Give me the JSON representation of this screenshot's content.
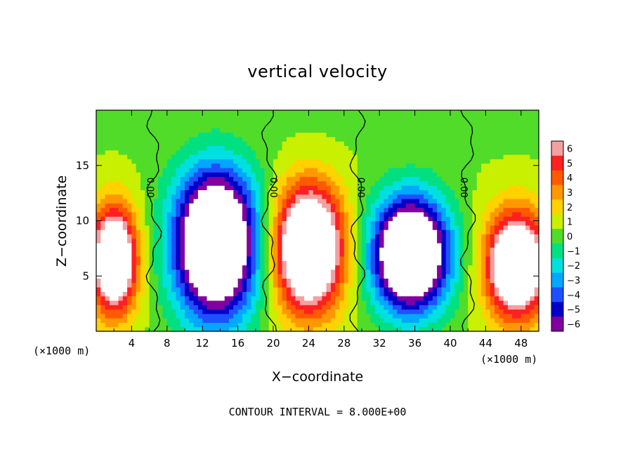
{
  "chart_data": {
    "type": "heatmap",
    "title": "vertical velocity",
    "xlabel": "X−coordinate",
    "ylabel": "Z−coordinate",
    "x_unit": "(×1000 m)",
    "xlim": [
      0,
      50
    ],
    "ylim": [
      0,
      20
    ],
    "x_ticks": [
      4,
      8,
      12,
      16,
      20,
      24,
      28,
      32,
      36,
      40,
      44,
      48
    ],
    "y_ticks": [
      5,
      10,
      15
    ],
    "colorbar": {
      "ticks": [
        6,
        5,
        4,
        3,
        2,
        1,
        0,
        -1,
        -2,
        -3,
        -4,
        -5,
        -6
      ],
      "tick_labels": [
        "6",
        "5",
        "4",
        "3",
        "2",
        "1",
        "0",
        "−1",
        "−2",
        "−3",
        "−4",
        "−5",
        "−6"
      ],
      "colors": {
        "6": "#f4a0a0",
        "5": "#ff2020",
        "4": "#ff5a00",
        "3": "#ff9800",
        "2": "#ffd200",
        "1": "#c8f000",
        "0": "#50dc28",
        "-1": "#00e080",
        "-2": "#00e0e0",
        "-3": "#00a8ff",
        "-4": "#1e50ff",
        "-5": "#0000c8",
        "-6": "#8000a0"
      }
    },
    "contour_label": "0.00",
    "zero_contour_x": [
      6.5,
      19.5,
      29.5,
      42.0
    ],
    "contour_interval_text": "CONTOUR INTERVAL = 8.000E+00",
    "features": [
      {
        "kind": "updraft",
        "x": 2.0,
        "z": 6.5,
        "rx": 3.0,
        "rz": 5.5,
        "amp": 11
      },
      {
        "kind": "downdraft",
        "x": 13.5,
        "z": 8.0,
        "rx": 5.5,
        "rz": 8.0,
        "amp": -13
      },
      {
        "kind": "updraft",
        "x": 24.0,
        "z": 7.5,
        "rx": 4.5,
        "rz": 6.5,
        "amp": 12
      },
      {
        "kind": "downdraft",
        "x": 35.5,
        "z": 7.0,
        "rx": 5.0,
        "rz": 6.0,
        "amp": -13
      },
      {
        "kind": "updraft",
        "x": 47.5,
        "z": 6.0,
        "rx": 4.0,
        "rz": 5.5,
        "amp": 11
      }
    ]
  }
}
